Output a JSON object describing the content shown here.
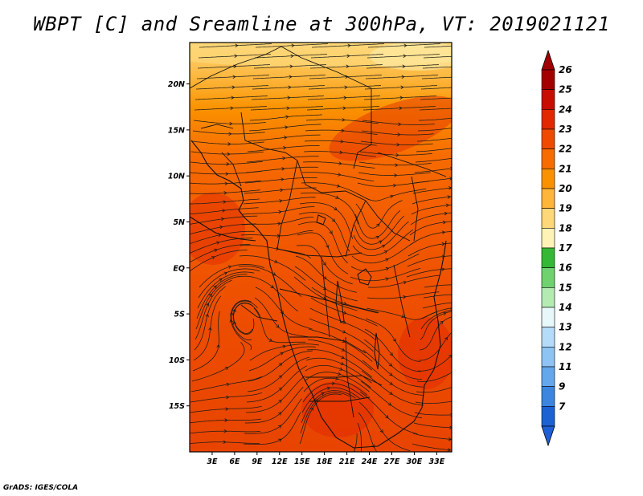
{
  "title": "WBPT [C] and Sreamline at 300hPa, VT: 2019021121",
  "credit": "GrADS: IGES/COLA",
  "map": {
    "lon_range": [
      0,
      35
    ],
    "lat_range": [
      -20,
      24.5
    ],
    "lon_ticks": [
      {
        "value": 3,
        "label": "3E"
      },
      {
        "value": 6,
        "label": "6E"
      },
      {
        "value": 9,
        "label": "9E"
      },
      {
        "value": 12,
        "label": "12E"
      },
      {
        "value": 15,
        "label": "15E"
      },
      {
        "value": 18,
        "label": "18E"
      },
      {
        "value": 21,
        "label": "21E"
      },
      {
        "value": 24,
        "label": "24E"
      },
      {
        "value": 27,
        "label": "27E"
      },
      {
        "value": 30,
        "label": "30E"
      },
      {
        "value": 33,
        "label": "33E"
      }
    ],
    "lat_ticks": [
      {
        "value": 20,
        "label": "20N"
      },
      {
        "value": 15,
        "label": "15N"
      },
      {
        "value": 10,
        "label": "10N"
      },
      {
        "value": 5,
        "label": "5N"
      },
      {
        "value": 0,
        "label": "EQ"
      },
      {
        "value": -5,
        "label": "5S"
      },
      {
        "value": -10,
        "label": "10S"
      },
      {
        "value": -15,
        "label": "15S"
      }
    ]
  },
  "colorbar": {
    "levels": [
      {
        "label": "26",
        "color": "#a50000"
      },
      {
        "label": "25",
        "color": "#c80c00"
      },
      {
        "label": "24",
        "color": "#e12800"
      },
      {
        "label": "23",
        "color": "#f04a00"
      },
      {
        "label": "22",
        "color": "#f76b00"
      },
      {
        "label": "21",
        "color": "#fa9200"
      },
      {
        "label": "20",
        "color": "#fdb53a"
      },
      {
        "label": "19",
        "color": "#fdd778"
      },
      {
        "label": "18",
        "color": "#fdf3b6"
      },
      {
        "label": "17",
        "color": "#35b835"
      },
      {
        "label": "16",
        "color": "#6fd26f"
      },
      {
        "label": "15",
        "color": "#b3ebb3"
      },
      {
        "label": "14",
        "color": "#e8f8fa"
      },
      {
        "label": "13",
        "color": "#b4dcf8"
      },
      {
        "label": "12",
        "color": "#8ec4f3"
      },
      {
        "label": "11",
        "color": "#64a7ea"
      },
      {
        "label": "9",
        "color": "#3c86df"
      },
      {
        "label": "7",
        "color": "#1c62d3"
      }
    ],
    "low_color": "#1f5fd6",
    "high_color": "#a00000"
  }
}
